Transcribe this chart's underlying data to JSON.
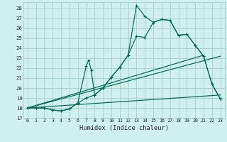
{
  "xlabel": "Humidex (Indice chaleur)",
  "bg_color": "#cff0ec",
  "grid_color": "#aad4ce",
  "line_color": "#006655",
  "xlim": [
    -0.5,
    23.5
  ],
  "ylim": [
    17.0,
    28.6
  ],
  "xticks": [
    0,
    1,
    2,
    3,
    4,
    5,
    6,
    7,
    8,
    9,
    10,
    11,
    12,
    13,
    14,
    15,
    16,
    17,
    18,
    19,
    20,
    21,
    22,
    23
  ],
  "yticks": [
    17,
    18,
    19,
    20,
    21,
    22,
    23,
    24,
    25,
    26,
    27,
    28
  ],
  "curve_main_x": [
    0,
    1,
    2,
    3,
    4,
    5,
    6,
    7,
    8,
    9,
    10,
    11,
    12,
    13,
    14,
    15,
    16,
    17,
    18,
    19,
    20,
    21,
    22,
    23
  ],
  "curve_main_y": [
    18.0,
    18.0,
    18.0,
    17.8,
    17.7,
    17.9,
    18.5,
    19.0,
    19.3,
    20.0,
    21.1,
    22.1,
    23.3,
    25.2,
    25.1,
    26.6,
    26.9,
    26.8,
    25.3,
    25.4,
    24.3,
    23.2,
    20.4,
    18.9
  ],
  "curve_peak_x": [
    0,
    1,
    2,
    3,
    4,
    5,
    6,
    7,
    7.3,
    7.6,
    8,
    9,
    10,
    11,
    12,
    13,
    14,
    15,
    16,
    17,
    18,
    19,
    20,
    21,
    22,
    23
  ],
  "curve_peak_y": [
    18.0,
    18.0,
    18.0,
    17.8,
    17.7,
    17.9,
    18.5,
    22.2,
    22.8,
    21.8,
    19.3,
    20.0,
    21.1,
    22.1,
    23.3,
    28.3,
    27.2,
    26.6,
    26.9,
    26.8,
    25.3,
    25.4,
    24.3,
    23.2,
    20.4,
    18.9
  ],
  "line1_x": [
    0,
    21
  ],
  "line1_y": [
    18.0,
    23.3
  ],
  "line2_x": [
    0,
    23
  ],
  "line2_y": [
    18.0,
    23.2
  ],
  "line3_x": [
    0,
    23
  ],
  "line3_y": [
    18.0,
    19.3
  ]
}
